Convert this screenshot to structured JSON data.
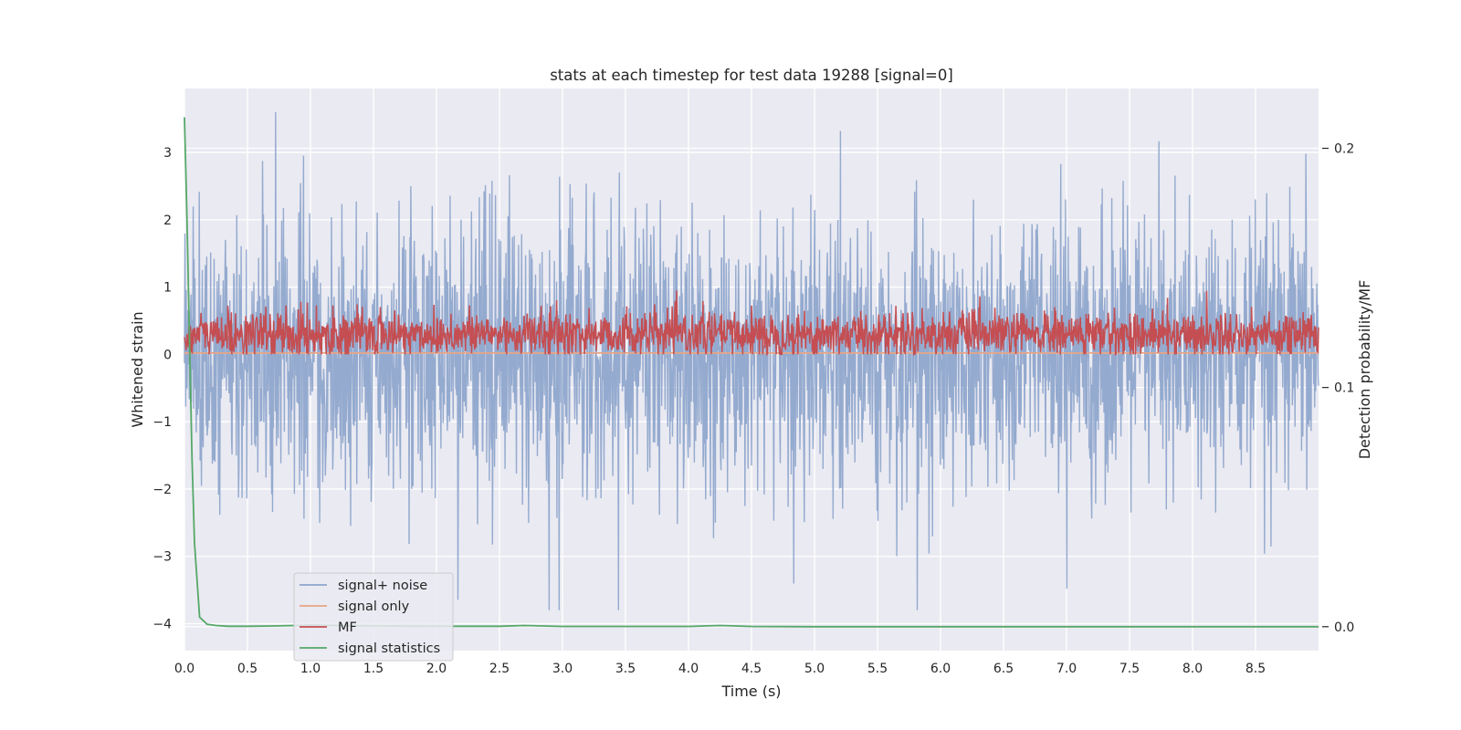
{
  "chart_data": {
    "type": "line",
    "title": "stats at each timestep for test data 19288 [signal=0]",
    "xlabel": "Time (s)",
    "ylabel": "Whitened strain",
    "y2label": "Detection probability/MF",
    "xlim": [
      0,
      9
    ],
    "ylim": [
      -4.4,
      3.95
    ],
    "y2lim": [
      -0.01,
      0.225
    ],
    "xticks": [
      "0.0",
      "0.5",
      "1.0",
      "1.5",
      "2.0",
      "2.5",
      "3.0",
      "3.5",
      "4.0",
      "4.5",
      "5.0",
      "5.5",
      "6.0",
      "6.5",
      "7.0",
      "7.5",
      "8.0",
      "8.5"
    ],
    "yticks": [
      "−4",
      "−3",
      "−2",
      "−1",
      "0",
      "1",
      "2",
      "3"
    ],
    "y2ticks": [
      "0.0",
      "0.1",
      "0.2"
    ],
    "grid": true,
    "legend_position": "lower-left",
    "series": [
      {
        "name": "signal+ noise",
        "axis": "left",
        "color": "#8fa6cc",
        "kind": "noise",
        "sigma": 1.0,
        "approx_range": [
          -3.8,
          3.6
        ]
      },
      {
        "name": "signal only",
        "axis": "left",
        "color": "#e8a585",
        "x": [
          0,
          9
        ],
        "values": [
          0.02,
          0.02
        ]
      },
      {
        "name": "MF",
        "axis": "left",
        "color": "#c44e52",
        "kind": "noise",
        "center": 0.3,
        "approx_range": [
          0.0,
          1.0
        ]
      },
      {
        "name": "signal statistics",
        "axis": "right",
        "color": "#55a868",
        "x": [
          0.0,
          0.02,
          0.04,
          0.06,
          0.08,
          0.12,
          0.18,
          0.25,
          0.35,
          0.5,
          0.7,
          1.0,
          1.5,
          2.0,
          2.5,
          2.7,
          3.0,
          4.0,
          4.25,
          4.5,
          5.0,
          6.0,
          7.0,
          8.0,
          9.0
        ],
        "values": [
          0.213,
          0.17,
          0.12,
          0.07,
          0.035,
          0.004,
          0.001,
          0.0005,
          0.0002,
          0.0002,
          0.0003,
          0.0006,
          0.0003,
          0.0002,
          0.0002,
          0.0005,
          0.0001,
          0.0001,
          0.0005,
          0.0001,
          0.0,
          0.0,
          0.0,
          0.0,
          0.0
        ]
      }
    ]
  }
}
